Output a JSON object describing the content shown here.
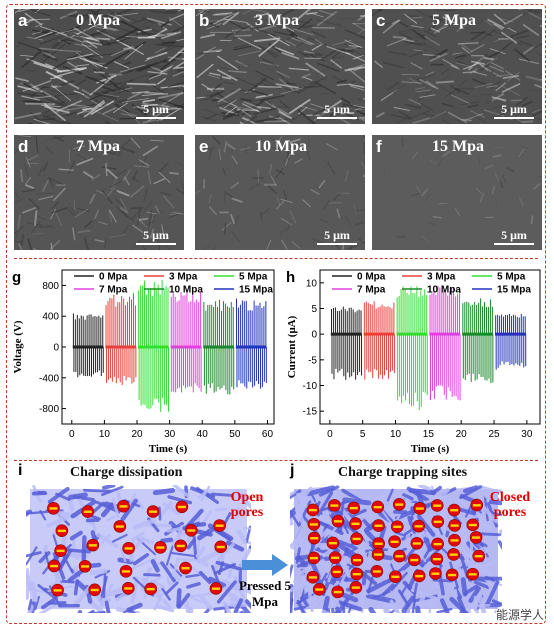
{
  "sem_panels": [
    {
      "letter": "a",
      "title": "0 Mpa",
      "scale": "5 μm"
    },
    {
      "letter": "b",
      "title": "3 Mpa",
      "scale": "5 μm"
    },
    {
      "letter": "c",
      "title": "5 Mpa",
      "scale": "5 μm"
    },
    {
      "letter": "d",
      "title": "7 Mpa",
      "scale": "5 μm"
    },
    {
      "letter": "e",
      "title": "10 Mpa",
      "scale": "5 μm"
    },
    {
      "letter": "f",
      "title": "15 Mpa",
      "scale": "5 μm"
    }
  ],
  "chart_data": [
    {
      "type": "line",
      "panel": "g",
      "ylabel": "Voltage (V)",
      "xlabel": "Time (s)",
      "xlim": [
        -3,
        62
      ],
      "ylim": [
        -1000,
        1000
      ],
      "xticks": [
        0,
        10,
        20,
        30,
        40,
        50,
        60
      ],
      "yticks": [
        -800,
        -400,
        0,
        400,
        800
      ],
      "legend_placement": "top",
      "series": [
        {
          "name": "0 Mpa",
          "color": "#222222",
          "x_start": 0,
          "x_end": 10,
          "peak_pos": 450,
          "peak_neg": -400
        },
        {
          "name": "3 Mpa",
          "color": "#e8403a",
          "x_start": 10,
          "x_end": 20,
          "peak_pos": 700,
          "peak_neg": -500
        },
        {
          "name": "5 Mpa",
          "color": "#33dd33",
          "x_start": 20,
          "x_end": 30,
          "peak_pos": 880,
          "peak_neg": -850
        },
        {
          "name": "7 Mpa",
          "color": "#e040e0",
          "x_start": 30,
          "x_end": 40,
          "peak_pos": 730,
          "peak_neg": -620
        },
        {
          "name": "10 Mpa",
          "color": "#1a8a2a",
          "x_start": 40,
          "x_end": 50,
          "peak_pos": 620,
          "peak_neg": -620
        },
        {
          "name": "15 Mpa",
          "color": "#2233bb",
          "x_start": 50,
          "x_end": 60,
          "peak_pos": 630,
          "peak_neg": -560
        }
      ]
    },
    {
      "type": "line",
      "panel": "h",
      "ylabel": "Current (μA)",
      "xlabel": "Time (s)",
      "xlim": [
        -1.5,
        32
      ],
      "ylim": [
        -17.5,
        12.5
      ],
      "xticks": [
        0,
        5,
        10,
        15,
        20,
        25,
        30
      ],
      "yticks": [
        -15,
        -10,
        -5,
        0,
        5,
        10
      ],
      "legend_placement": "top",
      "series": [
        {
          "name": "0 Mpa",
          "color": "#222222",
          "x_start": 0,
          "x_end": 5,
          "peak_pos": 5.5,
          "peak_neg": -9
        },
        {
          "name": "3 Mpa",
          "color": "#e8403a",
          "x_start": 5,
          "x_end": 10,
          "peak_pos": 6.5,
          "peak_neg": -9
        },
        {
          "name": "5 Mpa",
          "color": "#33dd33",
          "x_start": 10,
          "x_end": 15,
          "peak_pos": 9.5,
          "peak_neg": -15
        },
        {
          "name": "7 Mpa",
          "color": "#e040e0",
          "x_start": 15,
          "x_end": 20,
          "peak_pos": 9.5,
          "peak_neg": -13
        },
        {
          "name": "10 Mpa",
          "color": "#1a8a2a",
          "x_start": 20,
          "x_end": 25,
          "peak_pos": 7,
          "peak_neg": -10
        },
        {
          "name": "15 Mpa",
          "color": "#2233bb",
          "x_start": 25,
          "x_end": 30,
          "peak_pos": 4,
          "peak_neg": -7
        }
      ]
    }
  ],
  "illustrations": {
    "i": {
      "letter": "i",
      "title": "Charge dissipation",
      "pore_label": "Open pores"
    },
    "j": {
      "letter": "j",
      "title": "Charge trapping sites",
      "pore_label": "Closed pores"
    },
    "press_label": "Pressed 5 Mpa"
  },
  "watermark": "能源学人"
}
